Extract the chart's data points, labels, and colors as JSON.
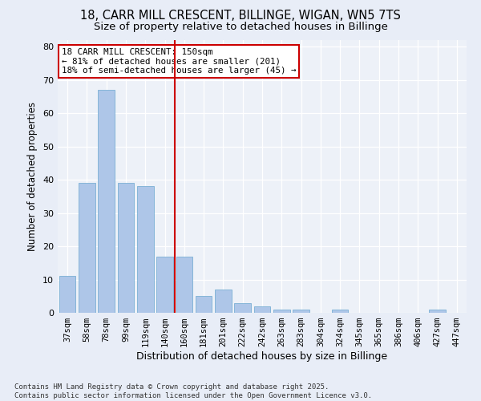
{
  "title1": "18, CARR MILL CRESCENT, BILLINGE, WIGAN, WN5 7TS",
  "title2": "Size of property relative to detached houses in Billinge",
  "xlabel": "Distribution of detached houses by size in Billinge",
  "ylabel": "Number of detached properties",
  "categories": [
    "37sqm",
    "58sqm",
    "78sqm",
    "99sqm",
    "119sqm",
    "140sqm",
    "160sqm",
    "181sqm",
    "201sqm",
    "222sqm",
    "242sqm",
    "263sqm",
    "283sqm",
    "304sqm",
    "324sqm",
    "345sqm",
    "365sqm",
    "386sqm",
    "406sqm",
    "427sqm",
    "447sqm"
  ],
  "values": [
    11,
    39,
    67,
    39,
    38,
    17,
    17,
    5,
    7,
    3,
    2,
    1,
    1,
    0,
    1,
    0,
    0,
    0,
    0,
    1,
    0
  ],
  "bar_color": "#aec6e8",
  "bar_edge_color": "#7aafd4",
  "vline_color": "#cc0000",
  "annotation_text": "18 CARR MILL CRESCENT: 150sqm\n← 81% of detached houses are smaller (201)\n18% of semi-detached houses are larger (45) →",
  "annotation_box_color": "#ffffff",
  "annotation_box_edge": "#cc0000",
  "ylim": [
    0,
    82
  ],
  "yticks": [
    0,
    10,
    20,
    30,
    40,
    50,
    60,
    70,
    80
  ],
  "bg_color": "#e8edf7",
  "plot_bg_color": "#edf1f8",
  "footer": "Contains HM Land Registry data © Crown copyright and database right 2025.\nContains public sector information licensed under the Open Government Licence v3.0.",
  "title_fontsize": 10.5,
  "subtitle_fontsize": 9.5,
  "vline_pos": 5.5
}
